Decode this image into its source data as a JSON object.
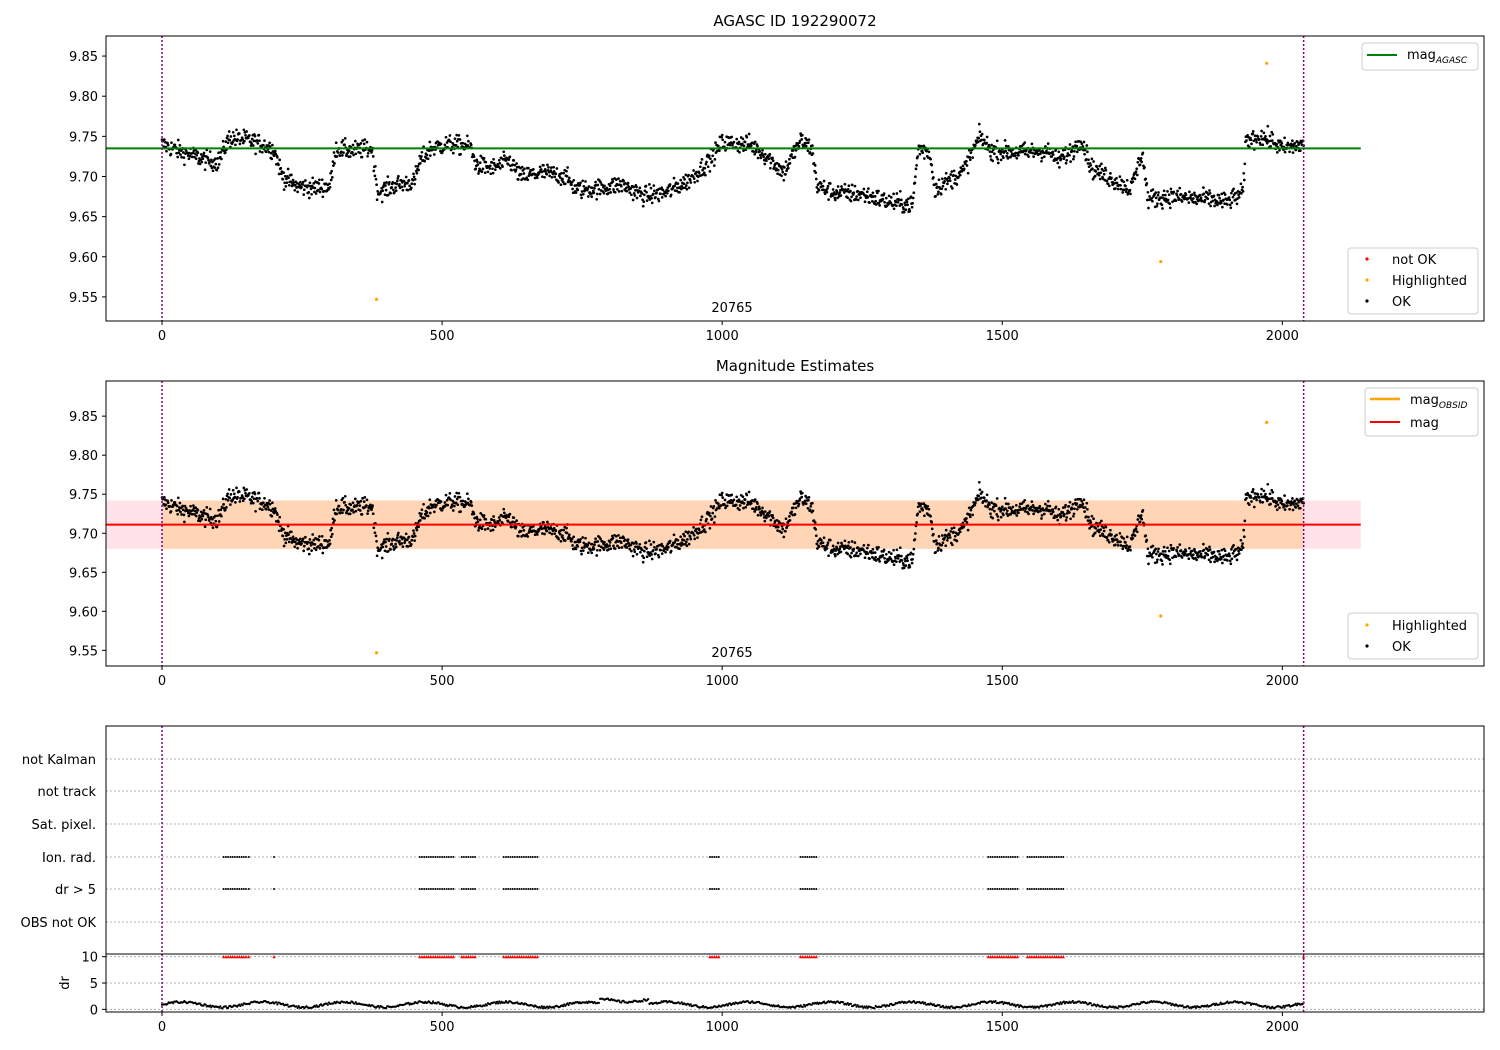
{
  "chart_data": [
    {
      "type": "scatter",
      "title": "AGASC ID 192290072",
      "xlim": [
        -100,
        2360
      ],
      "ylim": [
        9.52,
        9.875
      ],
      "xticks": [
        "0",
        "500",
        "1000",
        "1500",
        "2000"
      ],
      "yticks": [
        "9.55",
        "9.60",
        "9.65",
        "9.70",
        "9.75",
        "9.80",
        "9.85"
      ],
      "obsid_label": "20765",
      "vlines": [
        0,
        2038
      ],
      "reference_line": {
        "name": "mag_AGASC",
        "label": "mag",
        "subscript": "AGASC",
        "y": 9.735,
        "x": [
          -100,
          2140
        ],
        "color": "#008000"
      },
      "legend_lines": {
        "position": "upper right",
        "entries": [
          {
            "label": "mag",
            "subscript": "AGASC",
            "color": "#008000"
          }
        ]
      },
      "legend_points": {
        "position": "lower right",
        "entries": [
          {
            "label": "not OK",
            "color": "#ff0000"
          },
          {
            "label": "Highlighted",
            "color": "#ffa500"
          },
          {
            "label": "OK",
            "color": "#000000"
          }
        ]
      },
      "highlighted": [
        [
          383,
          9.547
        ],
        [
          1783,
          9.594
        ],
        [
          1972,
          9.841
        ]
      ],
      "series_trend": [
        [
          0,
          9.74
        ],
        [
          30,
          9.732
        ],
        [
          60,
          9.725
        ],
        [
          80,
          9.72
        ],
        [
          100,
          9.718
        ],
        [
          120,
          9.748
        ],
        [
          150,
          9.746
        ],
        [
          180,
          9.74
        ],
        [
          200,
          9.733
        ],
        [
          215,
          9.7
        ],
        [
          240,
          9.688
        ],
        [
          270,
          9.686
        ],
        [
          300,
          9.688
        ],
        [
          310,
          9.735
        ],
        [
          340,
          9.732
        ],
        [
          375,
          9.735
        ],
        [
          385,
          9.68
        ],
        [
          420,
          9.69
        ],
        [
          450,
          9.693
        ],
        [
          460,
          9.718
        ],
        [
          480,
          9.735
        ],
        [
          510,
          9.74
        ],
        [
          550,
          9.738
        ],
        [
          560,
          9.715
        ],
        [
          590,
          9.71
        ],
        [
          620,
          9.72
        ],
        [
          640,
          9.7
        ],
        [
          680,
          9.705
        ],
        [
          720,
          9.7
        ],
        [
          740,
          9.684
        ],
        [
          780,
          9.685
        ],
        [
          820,
          9.69
        ],
        [
          860,
          9.676
        ],
        [
          900,
          9.68
        ],
        [
          940,
          9.695
        ],
        [
          980,
          9.722
        ],
        [
          1000,
          9.742
        ],
        [
          1050,
          9.74
        ],
        [
          1080,
          9.725
        ],
        [
          1110,
          9.705
        ],
        [
          1140,
          9.745
        ],
        [
          1160,
          9.735
        ],
        [
          1170,
          9.688
        ],
        [
          1200,
          9.68
        ],
        [
          1250,
          9.678
        ],
        [
          1300,
          9.668
        ],
        [
          1340,
          9.665
        ],
        [
          1350,
          9.735
        ],
        [
          1370,
          9.73
        ],
        [
          1380,
          9.685
        ],
        [
          1400,
          9.693
        ],
        [
          1430,
          9.706
        ],
        [
          1460,
          9.75
        ],
        [
          1480,
          9.732
        ],
        [
          1530,
          9.73
        ],
        [
          1580,
          9.732
        ],
        [
          1600,
          9.72
        ],
        [
          1630,
          9.735
        ],
        [
          1640,
          9.748
        ],
        [
          1660,
          9.71
        ],
        [
          1700,
          9.695
        ],
        [
          1730,
          9.685
        ],
        [
          1750,
          9.73
        ],
        [
          1760,
          9.672
        ],
        [
          1800,
          9.675
        ],
        [
          1850,
          9.672
        ],
        [
          1870,
          9.672
        ],
        [
          1900,
          9.668
        ],
        [
          1930,
          9.68
        ],
        [
          1935,
          9.745
        ],
        [
          1960,
          9.75
        ],
        [
          1980,
          9.745
        ],
        [
          2000,
          9.735
        ],
        [
          2038,
          9.74
        ]
      ]
    },
    {
      "type": "scatter",
      "title": "Magnitude Estimates",
      "xlim": [
        -100,
        2360
      ],
      "ylim": [
        9.53,
        9.895
      ],
      "xticks": [
        "0",
        "500",
        "1000",
        "1500",
        "2000"
      ],
      "yticks": [
        "9.55",
        "9.60",
        "9.65",
        "9.70",
        "9.75",
        "9.80",
        "9.85"
      ],
      "obsid_label": "20765",
      "vlines": [
        0,
        2038
      ],
      "mag_line": {
        "label": "mag",
        "y": 9.711,
        "x": [
          -100,
          2140
        ],
        "color": "#ff0000",
        "band": [
          9.68,
          9.742
        ],
        "band_color": "#ffc0cb"
      },
      "mag_obsid": {
        "label": "mag",
        "subscript": "OBSID",
        "y": 9.711,
        "x": [
          0,
          2038
        ],
        "color": "#ffa500",
        "band": [
          9.68,
          9.742
        ]
      },
      "legend_lines": {
        "position": "upper right",
        "entries": [
          {
            "label": "mag",
            "subscript": "OBSID",
            "color": "#ffa500"
          },
          {
            "label": "mag",
            "subscript": "",
            "color": "#ff0000"
          }
        ]
      },
      "legend_points": {
        "position": "lower right",
        "entries": [
          {
            "label": "Highlighted",
            "color": "#ffa500"
          },
          {
            "label": "OK",
            "color": "#000000"
          }
        ]
      },
      "highlighted": [
        [
          383,
          9.547
        ],
        [
          1783,
          9.594
        ],
        [
          1972,
          9.842
        ]
      ]
    },
    {
      "type": "scatter",
      "title": "",
      "xlim": [
        -100,
        2360
      ],
      "flag_rows": [
        "not Kalman",
        "not track",
        "Sat. pixel.",
        "Ion. rad.",
        "dr > 5",
        "OBS not OK"
      ],
      "flag_segments": [
        [
          110,
          150
        ],
        [
          155,
          158
        ],
        [
          200,
          203
        ],
        [
          460,
          520
        ],
        [
          535,
          560
        ],
        [
          610,
          670
        ],
        [
          978,
          995
        ],
        [
          1140,
          1170
        ],
        [
          1475,
          1530
        ],
        [
          1545,
          1610
        ]
      ],
      "dr_ylabel": "dr",
      "dr_yticks": [
        "0",
        "5",
        "10"
      ],
      "dr_ylim": [
        -0.5,
        10.5
      ],
      "xticks": [
        "0",
        "500",
        "1000",
        "1500",
        "2000"
      ],
      "vlines": [
        0,
        2038
      ]
    }
  ]
}
